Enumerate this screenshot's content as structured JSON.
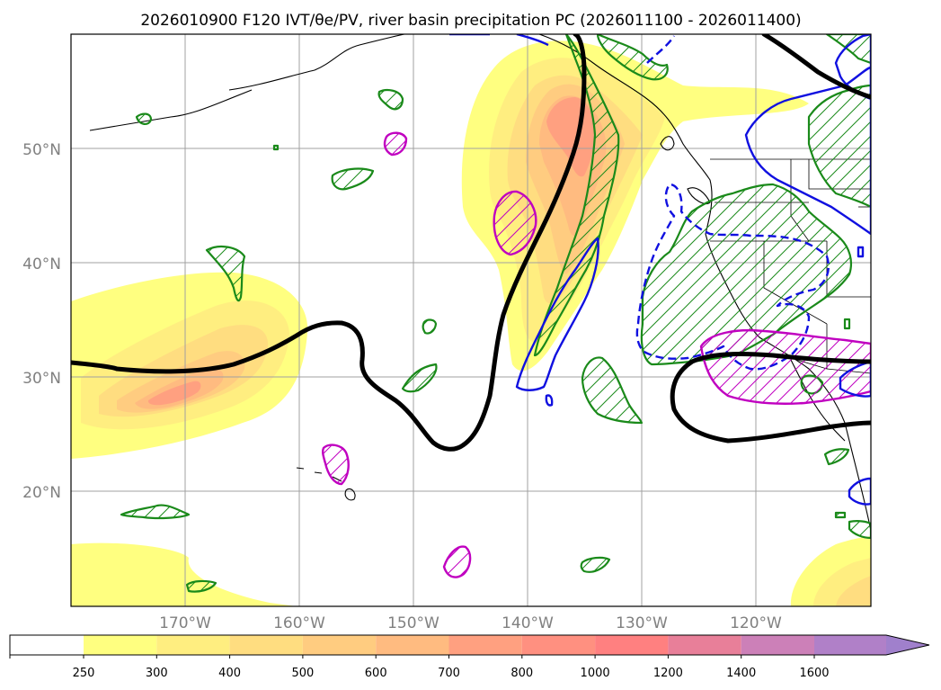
{
  "title": "2026010900 F120 IVT/θe/PV, river basin precipitation PC (2026011100 - 2026011400)",
  "map": {
    "projection": "PlateCarree",
    "extent": {
      "lon_min": -180,
      "lon_max": -110,
      "lat_min": 10,
      "lat_max": 60
    },
    "lat_labels": [
      "20°N",
      "30°N",
      "40°N",
      "50°N"
    ],
    "lon_labels": [
      "170°W",
      "160°W",
      "150°W",
      "140°W",
      "130°W",
      "120°W"
    ],
    "gridlines": true
  },
  "colors": {
    "ivt_levels": [
      "#ffff80",
      "#ffee80",
      "#ffdd80",
      "#ffcc80",
      "#ffbb80",
      "#ffa080",
      "#ff9080",
      "#ff8080",
      "#e87f99",
      "#cc80b8",
      "#b080c8",
      "#a080cc"
    ],
    "pv_contour": "#000000",
    "green_contour": "#1a8a1a",
    "blue_contour": "#1010e0",
    "magenta_contour": "#c000c0"
  },
  "colorbar": {
    "orientation": "horizontal",
    "extend": "max",
    "ticks": [
      "250",
      "300",
      "400",
      "500",
      "600",
      "700",
      "800",
      "1000",
      "1200",
      "1400",
      "1600"
    ],
    "colors": [
      "#ffffff",
      "#ffff80",
      "#ffee80",
      "#ffdd80",
      "#ffcc80",
      "#ffbb80",
      "#ffa080",
      "#ff9080",
      "#ff8080",
      "#e87f99",
      "#cc80b8",
      "#b080c8",
      "#a080cc"
    ]
  }
}
